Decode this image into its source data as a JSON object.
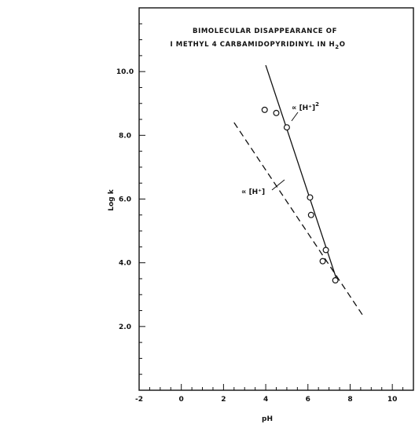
{
  "chart_data": {
    "type": "scatter",
    "title_lines": [
      "BIMOLECULAR DISAPPEARANCE OF",
      "I METHYL 4 CARBAMIDOPYRIDINYL IN H"
    ],
    "title_subscript": "2",
    "title_tail": "O",
    "xlabel": "pH",
    "ylabel": "Log k",
    "xlim": [
      -2,
      11
    ],
    "ylim": [
      0,
      12
    ],
    "x_ticks": [
      "-2",
      "0",
      "2",
      "4",
      "6",
      "8",
      "10"
    ],
    "y_ticks": [
      "2.0",
      "4.0",
      "6.0",
      "8.0",
      "10.0"
    ],
    "grid": false,
    "points": {
      "x": [
        3.95,
        4.5,
        5.0,
        6.1,
        6.15,
        6.7,
        6.85,
        7.3
      ],
      "y": [
        8.8,
        8.7,
        8.25,
        6.05,
        5.5,
        4.05,
        4.4,
        3.45
      ]
    },
    "series": [
      {
        "name": "∝[H⁺]²",
        "style": "solid",
        "x": [
          4.0,
          7.4
        ],
        "y": [
          10.2,
          3.4
        ]
      },
      {
        "name": "∝[H⁺]",
        "style": "dashed",
        "x": [
          2.5,
          8.6
        ],
        "y": [
          8.4,
          2.35
        ]
      }
    ],
    "annotations": [
      {
        "prefix": "∝",
        "text": "[H⁺]",
        "sup": "2"
      },
      {
        "prefix": "∝",
        "text": "[H⁺]",
        "sup": ""
      }
    ]
  }
}
